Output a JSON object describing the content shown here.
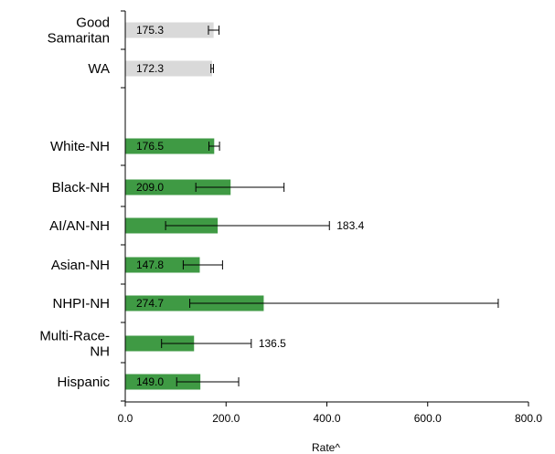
{
  "chart_data": {
    "type": "bar",
    "orientation": "horizontal",
    "xlabel": "Rate^",
    "xlim": [
      0,
      800
    ],
    "xticks": [
      "0.0",
      "200.0",
      "400.0",
      "600.0",
      "800.0"
    ],
    "grid": false,
    "colors": {
      "reference": "#d9d9d9",
      "group": "#3f9a44"
    },
    "categories": [
      {
        "label": [
          "Good",
          "Samaritan"
        ],
        "value": 175.3,
        "value_label": "175.3",
        "ci": [
          165,
          186
        ],
        "kind": "reference",
        "label_position": "inside"
      },
      {
        "label": [
          "WA"
        ],
        "value": 172.3,
        "value_label": "172.3",
        "ci": [
          170,
          175
        ],
        "kind": "reference",
        "label_position": "inside"
      },
      {
        "label": [
          "White-NH"
        ],
        "value": 176.5,
        "value_label": "176.5",
        "ci": [
          166,
          187
        ],
        "kind": "group",
        "label_position": "inside"
      },
      {
        "label": [
          "Black-NH"
        ],
        "value": 209.0,
        "value_label": "209.0",
        "ci": [
          140,
          315
        ],
        "kind": "group",
        "label_position": "inside"
      },
      {
        "label": [
          "AI/AN-NH"
        ],
        "value": 183.4,
        "value_label": "183.4",
        "ci": [
          80,
          405
        ],
        "kind": "group",
        "label_position": "outside"
      },
      {
        "label": [
          "Asian-NH"
        ],
        "value": 147.8,
        "value_label": "147.8",
        "ci": [
          115,
          193
        ],
        "kind": "group",
        "label_position": "inside"
      },
      {
        "label": [
          "NHPI-NH"
        ],
        "value": 274.7,
        "value_label": "274.7",
        "ci": [
          128,
          740
        ],
        "kind": "group",
        "label_position": "inside"
      },
      {
        "label": [
          "Multi-Race-",
          "NH"
        ],
        "value": 136.5,
        "value_label": "136.5",
        "ci": [
          72,
          250
        ],
        "kind": "group",
        "label_position": "outside"
      },
      {
        "label": [
          "Hispanic"
        ],
        "value": 149.0,
        "value_label": "149.0",
        "ci": [
          102,
          225
        ],
        "kind": "group",
        "label_position": "inside"
      }
    ]
  }
}
